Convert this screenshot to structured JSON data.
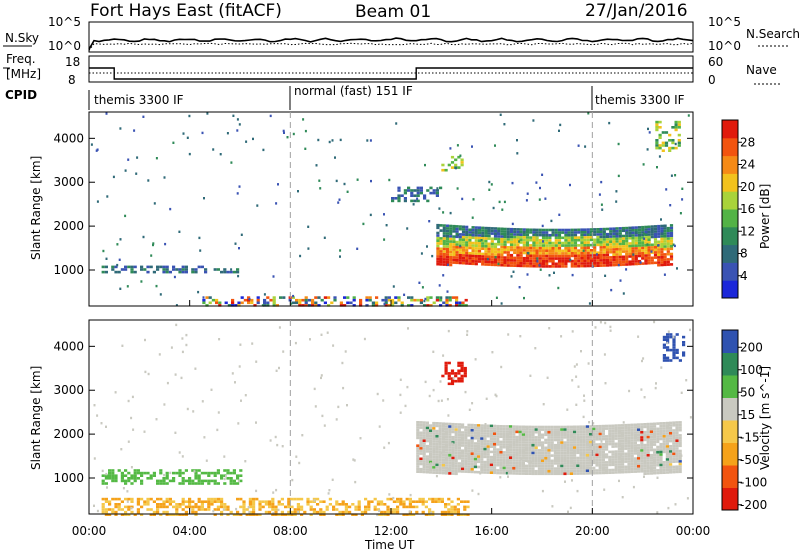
{
  "header": {
    "station": "Fort Hays East (fitACF)",
    "beam": "Beam 01",
    "date": "27/Jan/2016"
  },
  "noise_panel": {
    "left_label": "N.Sky",
    "right_label": "N.Search",
    "left_ticks": [
      "10^5",
      "10^0"
    ],
    "right_ticks": [
      "10^5",
      "10^0"
    ]
  },
  "freq_panel": {
    "left_label_1": "Freq.",
    "left_label_2": "[MHz]",
    "right_label": "Nave",
    "left_ticks": [
      "18",
      "8"
    ],
    "right_ticks": [
      "60",
      "0"
    ],
    "freq_levels": [
      {
        "t0": 0.0,
        "t1": 1.0,
        "f": 15
      },
      {
        "t0": 1.0,
        "t1": 13.0,
        "f": 9.5
      },
      {
        "t0": 13.0,
        "t1": 24.0,
        "f": 15
      }
    ]
  },
  "cpid": {
    "label": "CPID",
    "segments": [
      {
        "text": "themis 3300 IF",
        "start": 0.0
      },
      {
        "text": "normal (fast) 151 IF",
        "start": 8.0
      },
      {
        "text": "themis 3300 IF",
        "start": 20.0
      }
    ]
  },
  "chart_data": [
    {
      "type": "heatmap",
      "parameter": "Power",
      "ylabel": "Slant Range [km]",
      "colorbar_label": "Power [dB]",
      "colorbar_ticks": [
        "4",
        "8",
        "12",
        "16",
        "20",
        "24",
        "28"
      ],
      "colorbar_range": [
        0,
        32
      ],
      "x_range_hours": [
        0,
        24
      ],
      "y_range_km": [
        180,
        4600
      ],
      "y_ticks": [
        "1000",
        "2000",
        "3000",
        "4000"
      ],
      "regions": [
        {
          "t0": 13.8,
          "t1": 23.2,
          "r0": 1150,
          "r1": 2050,
          "level": "high",
          "desc": "main echo band"
        },
        {
          "t0": 0.5,
          "t1": 6.0,
          "r0": 950,
          "r1": 1100,
          "level": "low"
        },
        {
          "t0": 4.5,
          "t1": 15.0,
          "r0": 200,
          "r1": 400,
          "level": "mixed"
        },
        {
          "t0": 14.0,
          "t1": 14.8,
          "r0": 3300,
          "r1": 3600,
          "level": "mid"
        },
        {
          "t0": 12.0,
          "t1": 14.0,
          "r0": 2600,
          "r1": 2900,
          "level": "low"
        },
        {
          "t0": 22.5,
          "t1": 23.5,
          "r0": 3700,
          "r1": 4400,
          "level": "mid"
        }
      ]
    },
    {
      "type": "heatmap",
      "parameter": "Velocity",
      "ylabel": "Slant Range [km]",
      "xlabel": "Time UT",
      "colorbar_label": "Velocity [m s^-1]",
      "colorbar_ticks": [
        "200",
        "100",
        "50",
        "15",
        "-15",
        "-50",
        "-100",
        "-200"
      ],
      "x_range_hours": [
        0,
        24
      ],
      "y_range_km": [
        180,
        4600
      ],
      "y_ticks": [
        "1000",
        "2000",
        "3000",
        "4000"
      ],
      "x_ticks": [
        "00:00",
        "04:00",
        "08:00",
        "12:00",
        "16:00",
        "20:00",
        "00:00"
      ],
      "regions": [
        {
          "t0": 13.0,
          "t1": 23.5,
          "r0": 1150,
          "r1": 2300,
          "level": "ground",
          "desc": "low-velocity band"
        },
        {
          "t0": 0.5,
          "t1": 6.0,
          "r0": 900,
          "r1": 1200,
          "level": "positive"
        },
        {
          "t0": 0.5,
          "t1": 15.0,
          "r0": 180,
          "r1": 550,
          "level": "negative"
        },
        {
          "t0": 14.0,
          "t1": 15.0,
          "r0": 3150,
          "r1": 3650,
          "level": "strong-negative"
        },
        {
          "t0": 22.8,
          "t1": 23.6,
          "r0": 3700,
          "r1": 4300,
          "level": "strong-positive"
        }
      ]
    }
  ],
  "colors": {
    "power_scale": [
      "#1b27d9",
      "#3a53b3",
      "#2f6a78",
      "#2f8a58",
      "#53b346",
      "#a9d33a",
      "#f2c21d",
      "#f58a16",
      "#f2540f",
      "#e01a0c"
    ],
    "velocity_scale": [
      "#e01a0c",
      "#f2540f",
      "#f5a21a",
      "#f5c84a",
      "#c9c9c0",
      "#54b944",
      "#2f8a58",
      "#2f52b0"
    ],
    "dash": "#a0a0a0"
  }
}
